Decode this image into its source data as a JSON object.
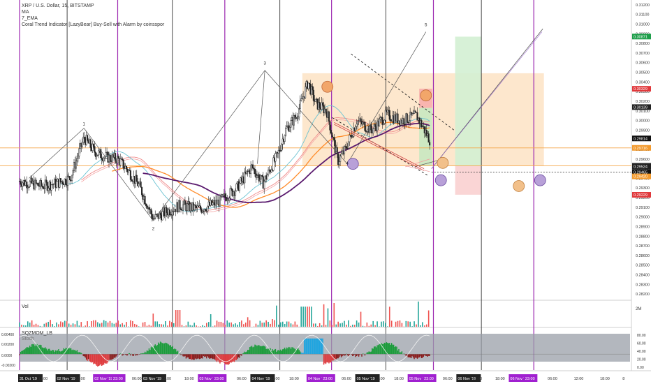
{
  "legend": {
    "symbol": "XRP / U.S. Dollar, 15, BITSTAMP",
    "ma": "MA",
    "ema": "7_EMA",
    "indicator": "Coral Trend Indicator [LazyBear] Buy-Sell with Alarm by coinsspor"
  },
  "panes": {
    "volume_label": "Vol",
    "volume_axis_label": "2M",
    "momentum_label": "SQZMOM_LB",
    "momentum_sub": "Stoch"
  },
  "chart_data": {
    "type": "candlestick",
    "price_axis": {
      "min": 0.2815,
      "max": 0.3125,
      "ticks": [
        "0.31200",
        "0.31100",
        "0.31000",
        "0.30900",
        "0.30800",
        "0.30700",
        "0.30600",
        "0.30500",
        "0.30400",
        "0.30300",
        "0.30200",
        "0.30100",
        "0.30000",
        "0.29900",
        "0.29800",
        "0.29700",
        "0.29600",
        "0.29500",
        "0.29400",
        "0.29300",
        "0.29200",
        "0.29100",
        "0.29000",
        "0.28900",
        "0.28800",
        "0.28700",
        "0.28600",
        "0.28500",
        "0.28400",
        "0.28300",
        "0.28200"
      ]
    },
    "price_markers": [
      {
        "label": "0.30871",
        "value": 0.30871,
        "color": "#1e9e4a"
      },
      {
        "label": "0.30329",
        "value": 0.30329,
        "color": "#e0383b"
      },
      {
        "label": "0.30139",
        "value": 0.30139,
        "color": "#222222"
      },
      {
        "label": "0.29814",
        "value": 0.29814,
        "color": "#111111"
      },
      {
        "label": "0.29716",
        "value": 0.29716,
        "color": "#f29a2e"
      },
      {
        "label": "0.29530",
        "value": 0.2953,
        "color": "#222222"
      },
      {
        "label": "0.29524",
        "value": 0.29524,
        "color": "#222222"
      },
      {
        "label": "0.29465",
        "value": 0.29465,
        "color": "#111111"
      },
      {
        "label": "0.29420",
        "value": 0.2942,
        "color": "#f29a2e"
      },
      {
        "label": "0.29229",
        "value": 0.29229,
        "color": "#e0383b"
      }
    ],
    "time_labels": [
      {
        "t": 0,
        "text": "31 Oct '19",
        "hl": false
      },
      {
        "t": 0.5,
        "text": "11:00",
        "hl": false
      },
      {
        "t": 1,
        "text": "02 Nov '19",
        "hl": false
      },
      {
        "t": 1.5,
        "text": "11:00",
        "hl": false
      },
      {
        "t": 2,
        "text": "02 Nov '19",
        "hl": true
      },
      {
        "t": 2.5,
        "text": "23:00",
        "hl": true
      },
      {
        "t": 3,
        "text": "06:00",
        "hl": false
      },
      {
        "t": 3.3,
        "text": "03 Nov '19",
        "hl": false
      },
      {
        "t": 3.8,
        "text": "11:00",
        "hl": false
      },
      {
        "t": 4.4,
        "text": "18:00",
        "hl": false
      },
      {
        "t": 4.8,
        "text": "03 Nov '19",
        "hl": true
      },
      {
        "t": 5.2,
        "text": "23:00",
        "hl": true
      },
      {
        "t": 5.8,
        "text": "06:00",
        "hl": false
      },
      {
        "t": 6.2,
        "text": "04 Nov '19",
        "hl": false
      },
      {
        "t": 6.7,
        "text": "11:00",
        "hl": false
      },
      {
        "t": 7.2,
        "text": "18:00",
        "hl": false
      },
      {
        "t": 7.7,
        "text": "04 Nov '19",
        "hl": true
      },
      {
        "t": 8.1,
        "text": "23:00",
        "hl": true
      },
      {
        "t": 8.6,
        "text": "06:00",
        "hl": false
      },
      {
        "t": 9.0,
        "text": "05 Nov '19",
        "hl": false
      },
      {
        "t": 9.5,
        "text": "11:00",
        "hl": false
      },
      {
        "t": 10.0,
        "text": "18:00",
        "hl": false
      },
      {
        "t": 10.4,
        "text": "05 Nov '19",
        "hl": true
      },
      {
        "t": 10.8,
        "text": "23:00",
        "hl": true
      },
      {
        "t": 11.3,
        "text": "06:00",
        "hl": false
      },
      {
        "t": 11.7,
        "text": "06 Nov '19",
        "hl": false
      },
      {
        "t": 12.1,
        "text": "11:00",
        "hl": false
      },
      {
        "t": 12.7,
        "text": "18:00",
        "hl": false
      },
      {
        "t": 13.1,
        "text": "06 Nov '19",
        "hl": true
      },
      {
        "t": 13.5,
        "text": "23:00",
        "hl": true
      },
      {
        "t": 14.1,
        "text": "06:00",
        "hl": false
      },
      {
        "t": 14.8,
        "text": "12:00",
        "hl": false
      },
      {
        "t": 15.5,
        "text": "18:00",
        "hl": false
      },
      {
        "t": 16.1,
        "text": "8",
        "hl": false
      }
    ],
    "wave_labels": [
      {
        "label": "1",
        "t": 1.72,
        "price": 0.2992
      },
      {
        "label": "2",
        "t": 3.57,
        "price": 0.2893
      },
      {
        "label": "3",
        "t": 6.55,
        "price": 0.3055
      },
      {
        "label": "4",
        "t": 8.75,
        "price": 0.2951
      },
      {
        "label": "5",
        "t": 10.85,
        "price": 0.3095
      }
    ],
    "momentum_axis": {
      "ticks": [
        "0.00400",
        "0.00200",
        "0.0000",
        "-0.00200"
      ]
    },
    "stoch_axis": {
      "ticks": [
        "80.00",
        "60.00",
        "40.00",
        "20.00",
        "0.00"
      ]
    },
    "volume_axis": {
      "ticks": [
        "2M"
      ]
    }
  },
  "colors": {
    "up": "#26a69a",
    "down": "#ef5350",
    "candle": "#222222",
    "session_line": "#9c27b0",
    "day_line": "#333333",
    "orange_zone": "#fde3c4",
    "green_zone": "#d3f0d3",
    "red_zone": "#fad0d0",
    "ema": "#5a1a6e",
    "ma": "#ff8c2a"
  }
}
